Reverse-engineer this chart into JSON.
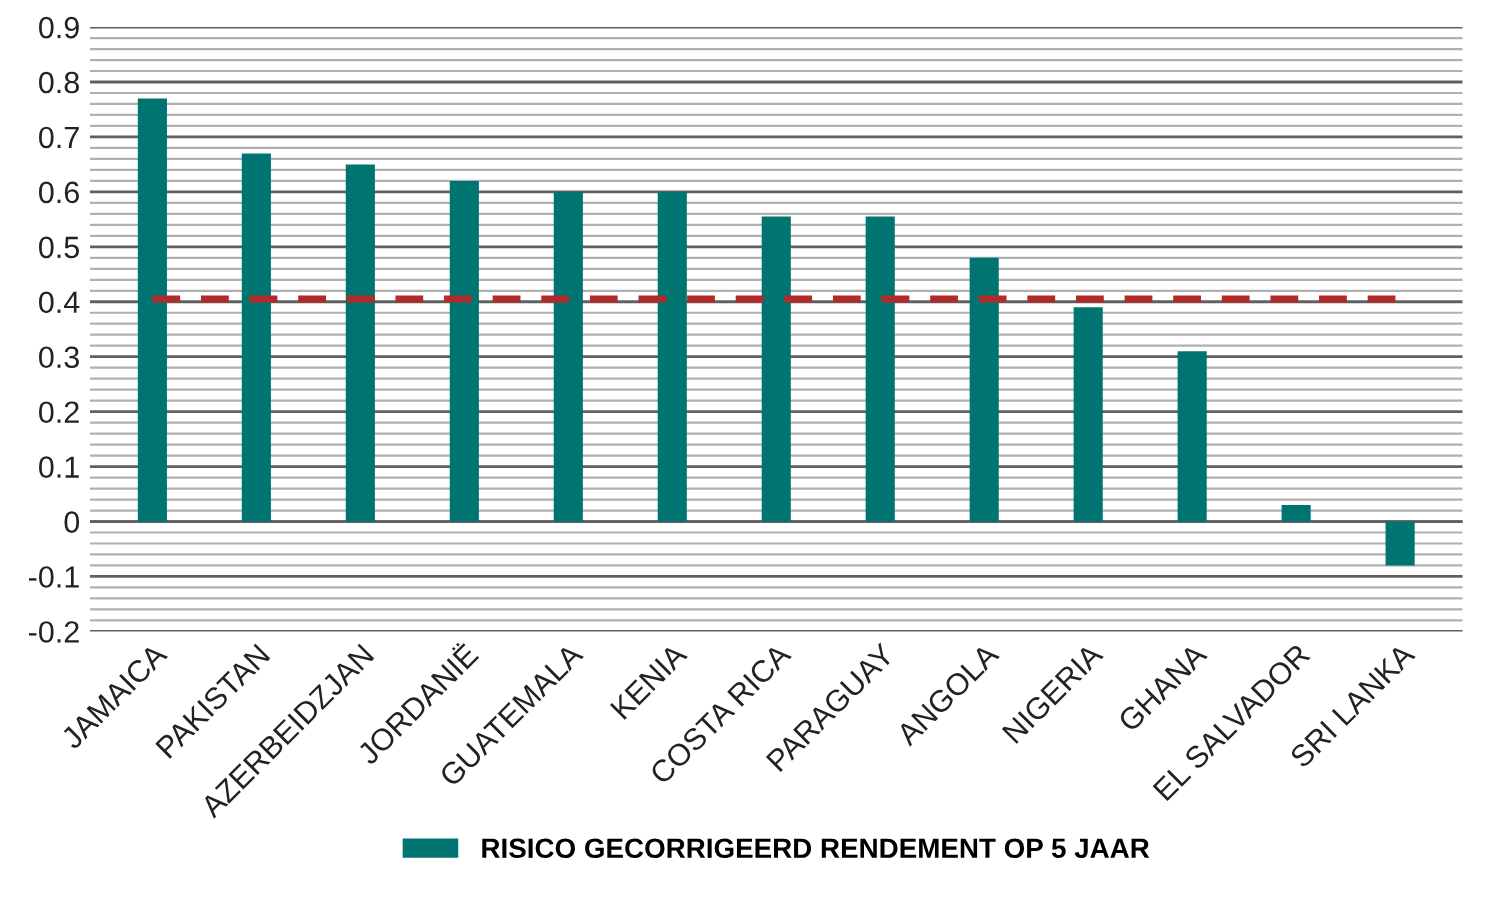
{
  "chart_data": {
    "type": "bar",
    "categories": [
      "JAMAICA",
      "PAKISTAN",
      "AZERBEIDZJAN",
      "JORDANIË",
      "GUATEMALA",
      "KENIA",
      "COSTA RICA",
      "PARAGUAY",
      "ANGOLA",
      "NIGERIA",
      "GHANA",
      "EL SALVADOR",
      "SRI LANKA"
    ],
    "series": [
      {
        "name": "RISICO GECORRIGEERD RENDEMENT OP 5 JAAR",
        "color": "#007470",
        "values": [
          0.77,
          0.67,
          0.65,
          0.62,
          0.6,
          0.6,
          0.555,
          0.555,
          0.48,
          0.39,
          0.31,
          0.03,
          -0.08
        ]
      },
      {
        "type": "line",
        "color": "#b22a2a",
        "line_style": "dashed",
        "values": [
          0.405,
          0.405,
          0.405,
          0.405,
          0.405,
          0.405,
          0.405,
          0.405,
          0.405,
          0.405,
          0.405,
          0.405,
          0.405
        ]
      }
    ],
    "ylim": [
      -0.2,
      0.9
    ],
    "yticks": [
      -0.2,
      -0.1,
      0,
      0.1,
      0.2,
      0.3,
      0.4,
      0.5,
      0.6,
      0.7,
      0.8,
      0.9
    ],
    "grid": "y",
    "legend": "bottom"
  }
}
